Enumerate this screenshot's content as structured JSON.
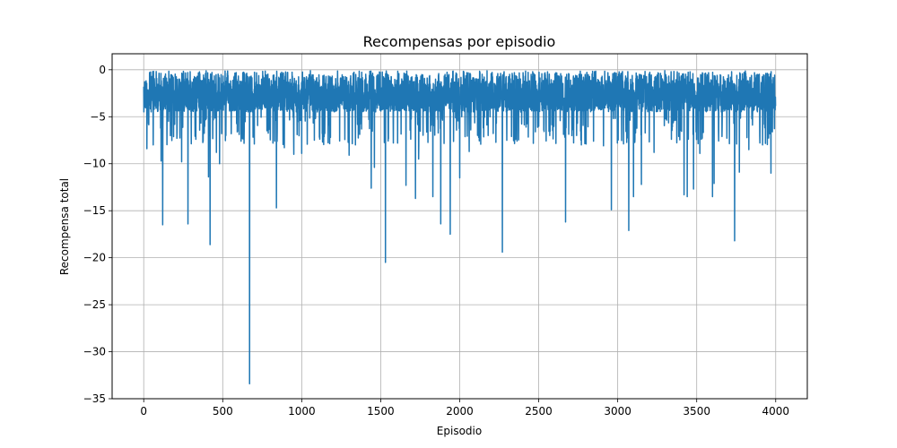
{
  "chart_data": {
    "type": "line",
    "title": "Recompensas por episodio",
    "xlabel": "Episodio",
    "ylabel": "Recompensa total",
    "xlim": [
      -200,
      4200
    ],
    "ylim": [
      -35,
      1.7
    ],
    "xticks": [
      0,
      500,
      1000,
      1500,
      2000,
      2500,
      3000,
      3500,
      4000
    ],
    "xtick_labels": [
      "0",
      "500",
      "1000",
      "1500",
      "2000",
      "2500",
      "3000",
      "3500",
      "4000"
    ],
    "yticks": [
      0,
      -5,
      -10,
      -15,
      -20,
      -25,
      -30,
      -35
    ],
    "ytick_labels": [
      "0",
      "−5",
      "−10",
      "−15",
      "−20",
      "−25",
      "−30",
      "−35"
    ],
    "grid": true,
    "line_color": "#1f77b4",
    "series": [
      {
        "x_start": 0,
        "x_end": 3999,
        "n_points": 4000,
        "typical_range": [
          -4.5,
          -0.1
        ],
        "spikes": [
          {
            "x": 20,
            "y": -8.4
          },
          {
            "x": 60,
            "y": -8.0
          },
          {
            "x": 110,
            "y": -9.7
          },
          {
            "x": 120,
            "y": -16.5
          },
          {
            "x": 210,
            "y": -7.3
          },
          {
            "x": 240,
            "y": -9.8
          },
          {
            "x": 280,
            "y": -16.4
          },
          {
            "x": 330,
            "y": -7.4
          },
          {
            "x": 410,
            "y": -11.4
          },
          {
            "x": 420,
            "y": -18.6
          },
          {
            "x": 460,
            "y": -8.8
          },
          {
            "x": 480,
            "y": -10.0
          },
          {
            "x": 520,
            "y": -7.0
          },
          {
            "x": 620,
            "y": -5.9
          },
          {
            "x": 670,
            "y": -33.4
          },
          {
            "x": 700,
            "y": -7.9
          },
          {
            "x": 780,
            "y": -6.5
          },
          {
            "x": 840,
            "y": -14.7
          },
          {
            "x": 890,
            "y": -8.3
          },
          {
            "x": 950,
            "y": -9.0
          },
          {
            "x": 1000,
            "y": -8.9
          },
          {
            "x": 1080,
            "y": -7.5
          },
          {
            "x": 1130,
            "y": -6.8
          },
          {
            "x": 1180,
            "y": -7.1
          },
          {
            "x": 1300,
            "y": -9.1
          },
          {
            "x": 1340,
            "y": -8.0
          },
          {
            "x": 1440,
            "y": -12.6
          },
          {
            "x": 1460,
            "y": -10.4
          },
          {
            "x": 1530,
            "y": -20.5
          },
          {
            "x": 1580,
            "y": -7.8
          },
          {
            "x": 1660,
            "y": -12.3
          },
          {
            "x": 1720,
            "y": -13.7
          },
          {
            "x": 1740,
            "y": -9.5
          },
          {
            "x": 1830,
            "y": -13.5
          },
          {
            "x": 1880,
            "y": -16.4
          },
          {
            "x": 1940,
            "y": -17.5
          },
          {
            "x": 2000,
            "y": -11.5
          },
          {
            "x": 2060,
            "y": -8.7
          },
          {
            "x": 2120,
            "y": -7.2
          },
          {
            "x": 2180,
            "y": -7.0
          },
          {
            "x": 2270,
            "y": -19.4
          },
          {
            "x": 2350,
            "y": -7.1
          },
          {
            "x": 2420,
            "y": -6.1
          },
          {
            "x": 2570,
            "y": -7.0
          },
          {
            "x": 2670,
            "y": -16.2
          },
          {
            "x": 2740,
            "y": -7.0
          },
          {
            "x": 2800,
            "y": -7.9
          },
          {
            "x": 2910,
            "y": -8.1
          },
          {
            "x": 2960,
            "y": -14.9
          },
          {
            "x": 3070,
            "y": -17.1
          },
          {
            "x": 3100,
            "y": -13.5
          },
          {
            "x": 3150,
            "y": -12.2
          },
          {
            "x": 3230,
            "y": -8.8
          },
          {
            "x": 3340,
            "y": -7.4
          },
          {
            "x": 3420,
            "y": -13.3
          },
          {
            "x": 3440,
            "y": -13.5
          },
          {
            "x": 3480,
            "y": -12.7
          },
          {
            "x": 3520,
            "y": -8.9
          },
          {
            "x": 3600,
            "y": -13.5
          },
          {
            "x": 3610,
            "y": -12.1
          },
          {
            "x": 3660,
            "y": -7.1
          },
          {
            "x": 3740,
            "y": -18.2
          },
          {
            "x": 3770,
            "y": -10.9
          },
          {
            "x": 3830,
            "y": -8.5
          },
          {
            "x": 3900,
            "y": -7.8
          },
          {
            "x": 3970,
            "y": -11.0
          }
        ]
      }
    ]
  }
}
